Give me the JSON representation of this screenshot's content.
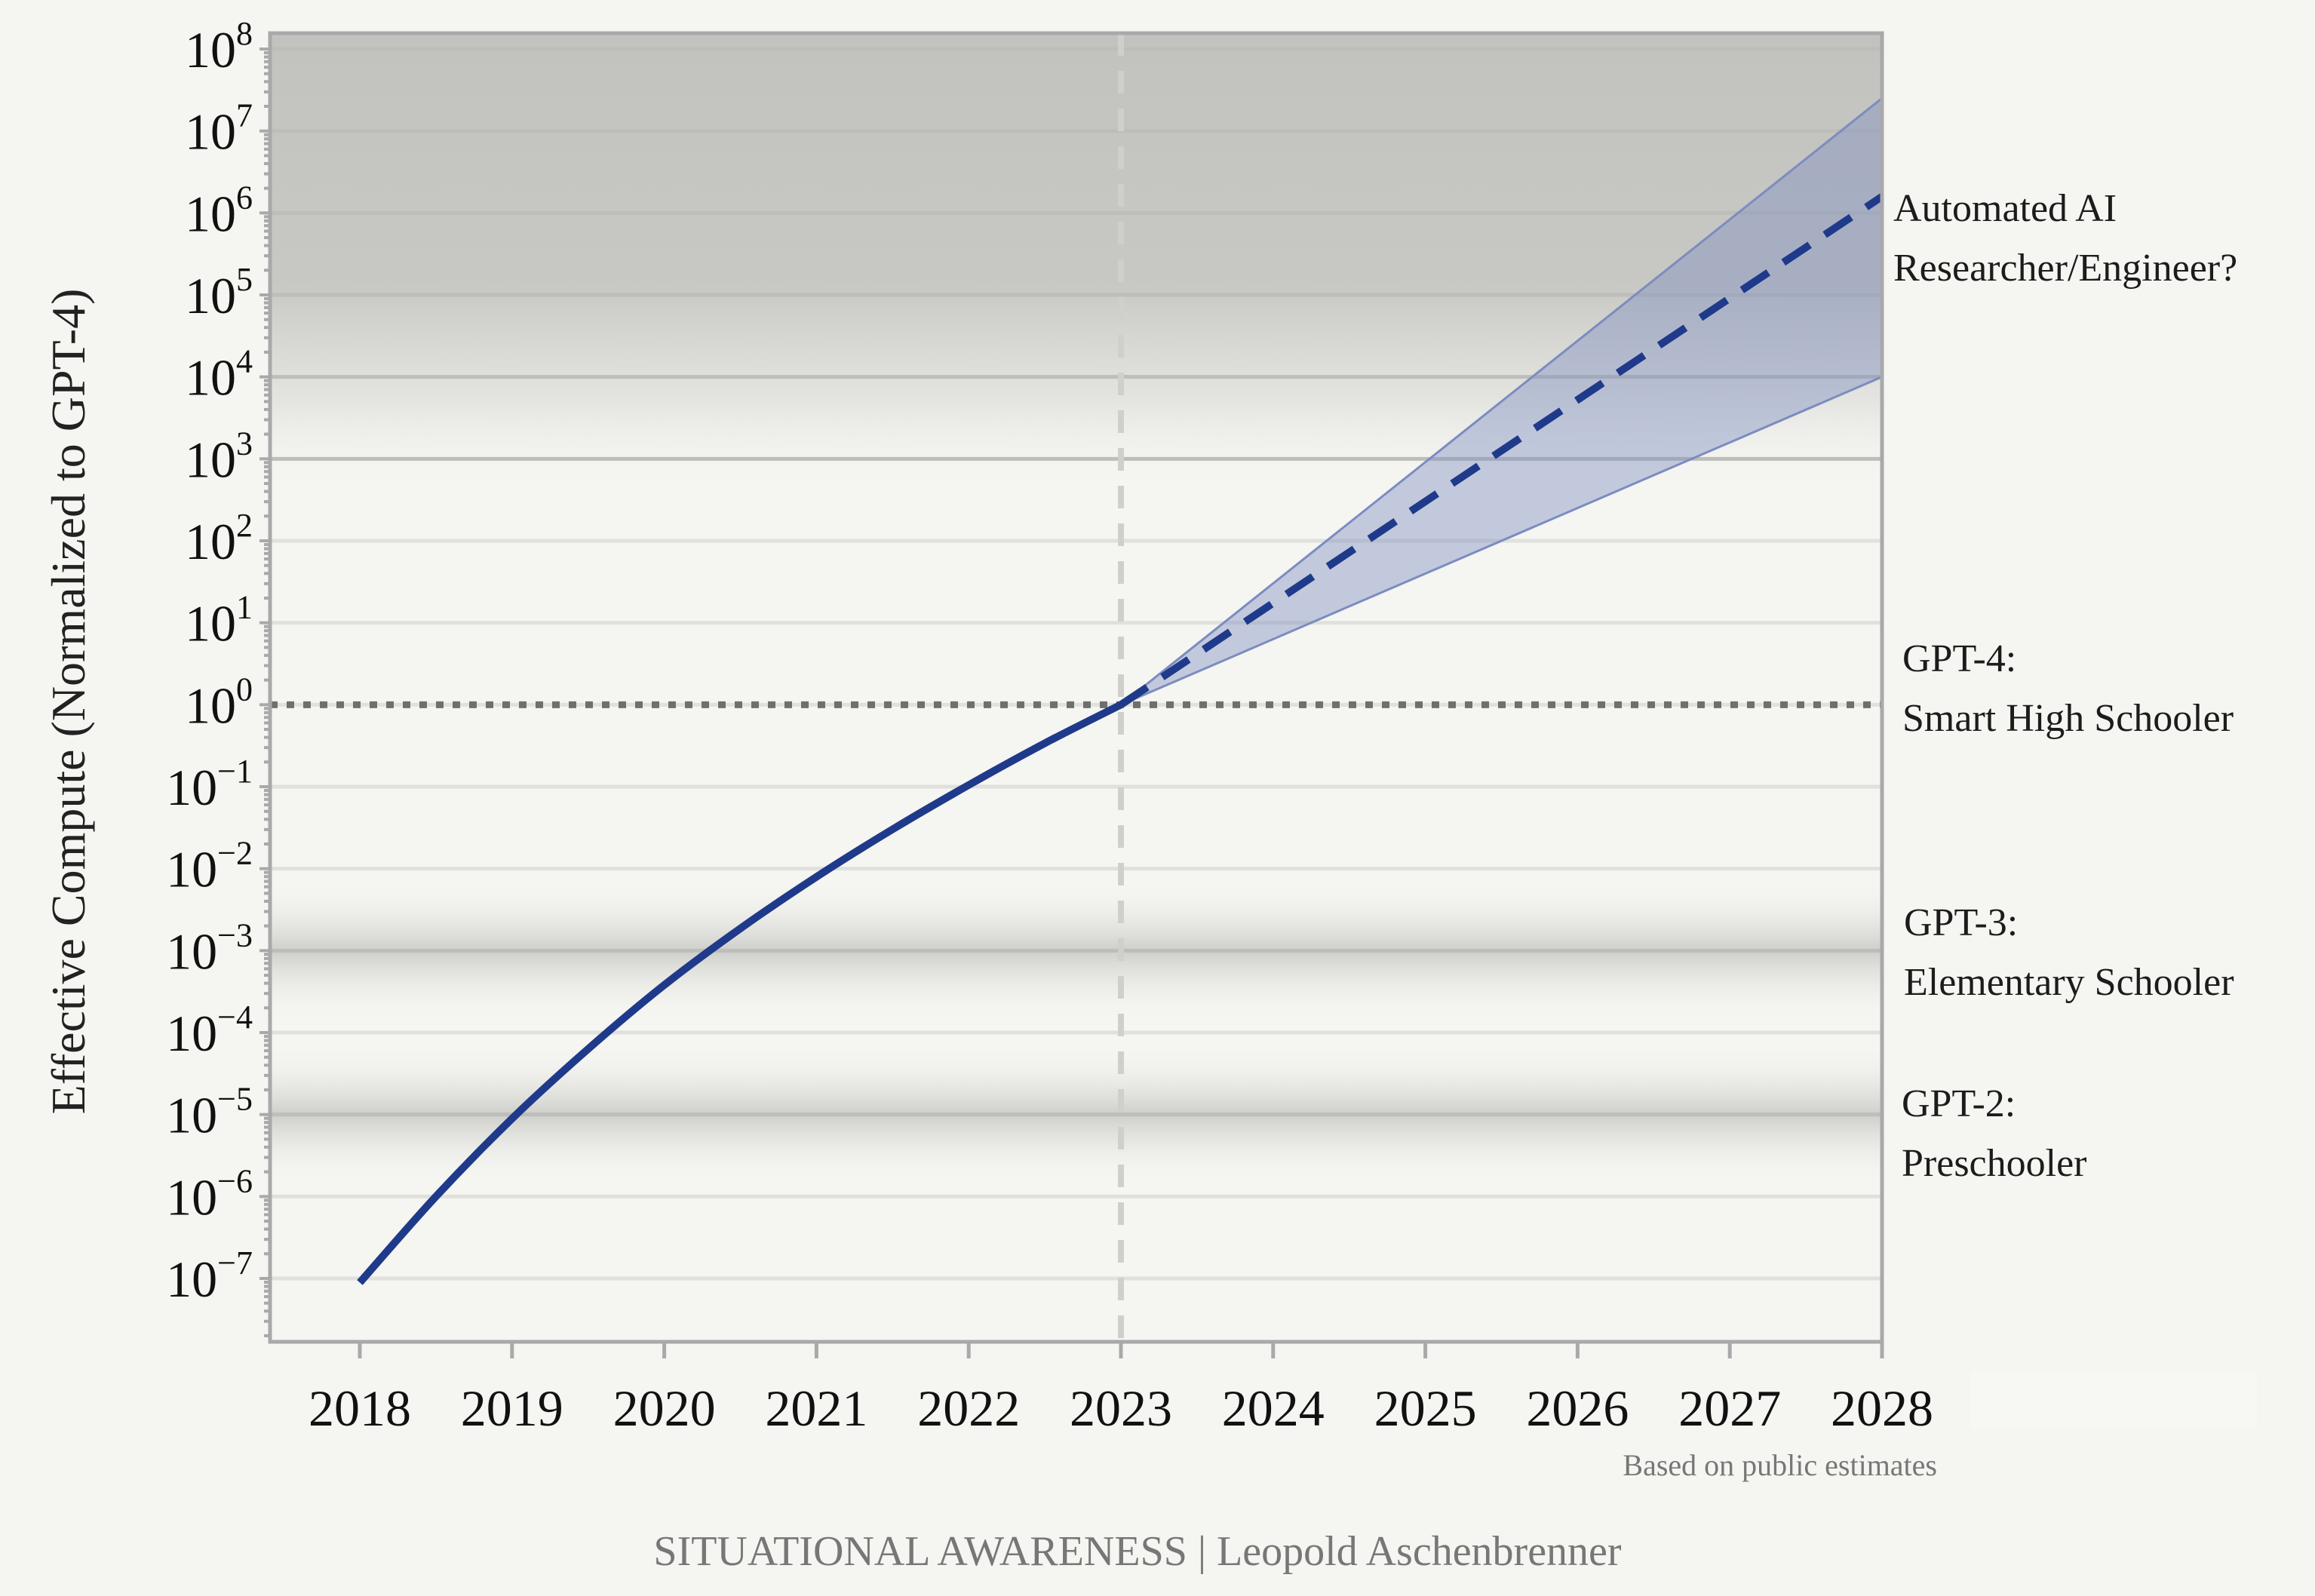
{
  "chart_data": {
    "type": "line",
    "title": "",
    "xlabel": "",
    "ylabel": "Effective Compute (Normalized to GPT-4)",
    "y_scale": "log",
    "x_ticks": [
      "2018",
      "2019",
      "2020",
      "2021",
      "2022",
      "2023",
      "2024",
      "2025",
      "2026",
      "2027",
      "2028"
    ],
    "y_ticks": [
      {
        "base": "10",
        "exp": "−7"
      },
      {
        "base": "10",
        "exp": "−6"
      },
      {
        "base": "10",
        "exp": "−5"
      },
      {
        "base": "10",
        "exp": "−4"
      },
      {
        "base": "10",
        "exp": "−3"
      },
      {
        "base": "10",
        "exp": "−2"
      },
      {
        "base": "10",
        "exp": "−1"
      },
      {
        "base": "10",
        "exp": "0"
      },
      {
        "base": "10",
        "exp": "1"
      },
      {
        "base": "10",
        "exp": "2"
      },
      {
        "base": "10",
        "exp": "3"
      },
      {
        "base": "10",
        "exp": "4"
      },
      {
        "base": "10",
        "exp": "5"
      },
      {
        "base": "10",
        "exp": "6"
      },
      {
        "base": "10",
        "exp": "7"
      },
      {
        "base": "10",
        "exp": "8"
      }
    ],
    "xlim": [
      2017.4,
      2028
    ],
    "ylim_log10": [
      -7.8,
      8.2
    ],
    "series": [
      {
        "style": "solid",
        "color": "#1f3a8a",
        "points": [
          [
            2018,
            -7.05
          ],
          [
            2018.5,
            -6.0
          ],
          [
            2019,
            -5.05
          ],
          [
            2019.5,
            -4.2
          ],
          [
            2020,
            -3.42
          ],
          [
            2020.5,
            -2.73
          ],
          [
            2021,
            -2.1
          ],
          [
            2021.5,
            -1.52
          ],
          [
            2022,
            -0.98
          ],
          [
            2022.5,
            -0.47
          ],
          [
            2023,
            0
          ]
        ]
      },
      {
        "style": "dashed",
        "color": "#1f3a8a",
        "points": [
          [
            2023,
            0
          ],
          [
            2028,
            6.2
          ]
        ]
      }
    ],
    "band": {
      "color": "#7c8cc0",
      "upper": [
        [
          2023,
          0
        ],
        [
          2028,
          7.4
        ]
      ],
      "lower": [
        [
          2023,
          0
        ],
        [
          2028,
          4.0
        ]
      ]
    },
    "vline_x": 2023,
    "hline_log10": 0,
    "shaded_levels": [
      {
        "center_log10": -5,
        "label_lines": [
          "GPT-2:",
          "Preschooler"
        ]
      },
      {
        "center_log10": -3,
        "label_lines": [
          "GPT-3:",
          "Elementary Schooler"
        ]
      },
      {
        "center_log10": 0,
        "label_lines": [
          "GPT-4:",
          "Smart High Schooler"
        ]
      },
      {
        "center_log10": 6,
        "label_lines": [
          "Automated AI",
          "Researcher/Engineer?"
        ]
      }
    ],
    "grid": true
  },
  "footnote": "Based on public estimates",
  "credit": "SITUATIONAL AWARENESS | Leopold Aschenbrenner"
}
